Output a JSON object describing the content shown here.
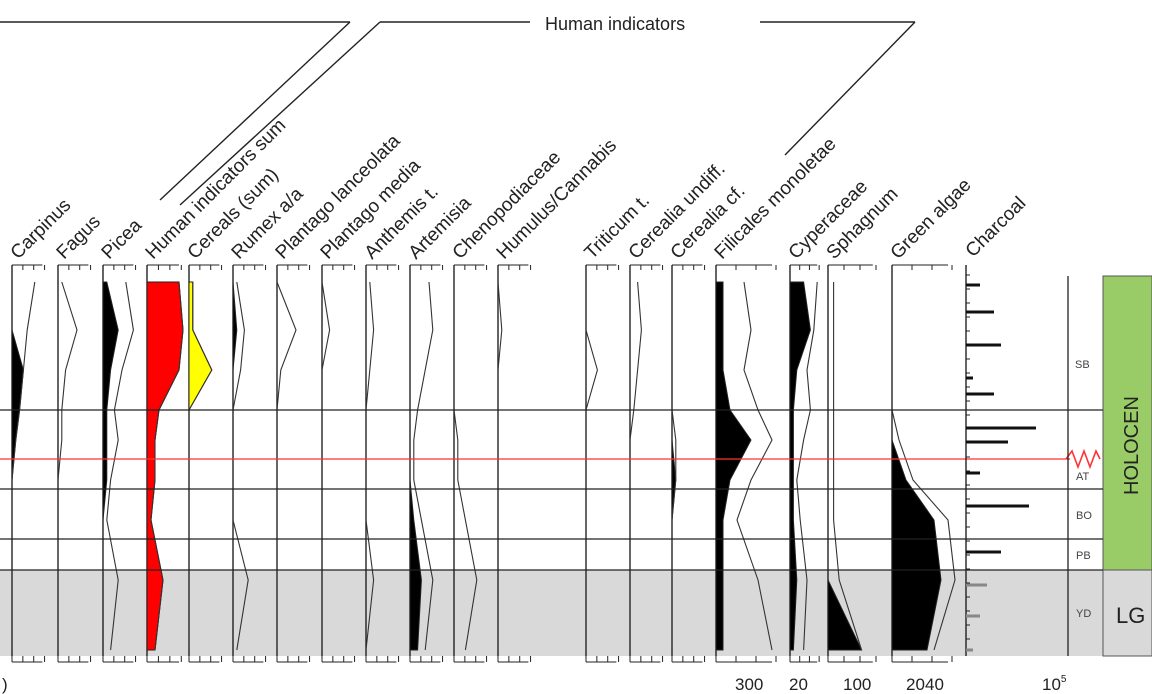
{
  "chart_data": {
    "type": "area",
    "group_label": "Human indicators",
    "taxa": [
      {
        "name": "Carpinus",
        "fill": "#000000",
        "profile": [
          0,
          0,
          0.3,
          0.2,
          0.1,
          0,
          0,
          0,
          0
        ],
        "curve": [
          0.6,
          0.4,
          0.3,
          0.2,
          0.1,
          0,
          0,
          0,
          0
        ]
      },
      {
        "name": "Fagus",
        "fill": "#000000",
        "profile": [
          0,
          0,
          0,
          0,
          0,
          0,
          0,
          0,
          0
        ],
        "curve": [
          0.1,
          0.5,
          0.2,
          0.1,
          0.1,
          0,
          0,
          0,
          0
        ]
      },
      {
        "name": "Picea",
        "fill": "#000000",
        "profile": [
          0.1,
          0.4,
          0.2,
          0.1,
          0.1,
          0.1,
          0,
          0,
          0
        ],
        "curve": [
          0.6,
          0.8,
          0.5,
          0.3,
          0.4,
          0.2,
          0.1,
          0.4,
          0.2
        ]
      },
      {
        "name": "Human indicators sum",
        "fill": "#ff0000",
        "profile": [
          0.8,
          0.9,
          0.8,
          0.3,
          0.2,
          0.2,
          0.1,
          0.4,
          0.2
        ],
        "curve": [
          0.8,
          0.9,
          0.8,
          0.3,
          0.2,
          0.2,
          0.1,
          0.4,
          0.2
        ]
      },
      {
        "name": "Cereals (sum)",
        "fill": "#ffff00",
        "profile": [
          0.1,
          0.1,
          0.6,
          0,
          0,
          0,
          0,
          0,
          0
        ],
        "curve": [
          0.1,
          0.1,
          0.6,
          0,
          0,
          0,
          0,
          0,
          0
        ]
      },
      {
        "name": "Rumex a/a",
        "fill": "#000000",
        "profile": [
          0,
          0.1,
          0,
          0,
          0,
          0,
          0,
          0,
          0
        ],
        "curve": [
          0.1,
          0.3,
          0.2,
          0,
          0,
          0,
          0,
          0.4,
          0.1
        ]
      },
      {
        "name": "Plantago lanceolata",
        "fill": "#000000",
        "profile": [
          0,
          0,
          0,
          0,
          0,
          0,
          0,
          0,
          0
        ],
        "curve": [
          0,
          0.5,
          0.1,
          0,
          0,
          0,
          0,
          0,
          0
        ]
      },
      {
        "name": "Plantago media",
        "fill": "#000000",
        "profile": [
          0,
          0,
          0,
          0,
          0,
          0,
          0,
          0,
          0
        ],
        "curve": [
          0,
          0.2,
          0,
          0,
          0,
          0,
          0,
          0,
          0
        ]
      },
      {
        "name": "Anthemis t.",
        "fill": "#000000",
        "profile": [
          0,
          0,
          0,
          0,
          0,
          0,
          0,
          0,
          0
        ],
        "curve": [
          0.1,
          0.2,
          0.1,
          0,
          0,
          0,
          0,
          0.2,
          0
        ]
      },
      {
        "name": "Artemisia",
        "fill": "#000000",
        "profile": [
          0,
          0,
          0,
          0,
          0,
          0,
          0.1,
          0.3,
          0.2
        ],
        "curve": [
          0.5,
          0.6,
          0.4,
          0.2,
          0.1,
          0.1,
          0.3,
          0.6,
          0.4
        ]
      },
      {
        "name": "Chenopodiaceae",
        "fill": "#000000",
        "profile": [
          0,
          0,
          0,
          0,
          0,
          0,
          0,
          0,
          0
        ],
        "curve": [
          0,
          0,
          0,
          0,
          0.1,
          0.1,
          0.3,
          0.6,
          0.3
        ]
      },
      {
        "name": "Humulus/Cannabis",
        "fill": "#000000",
        "profile": [
          0,
          0,
          0,
          0,
          0,
          0,
          0,
          0,
          0
        ],
        "curve": [
          0,
          0.1,
          0,
          0,
          0,
          0,
          0,
          0,
          0
        ]
      },
      {
        "name": "Triticum t.",
        "fill": "#000000",
        "profile": [
          0,
          0,
          0,
          0,
          0,
          0,
          0,
          0,
          0
        ],
        "curve": [
          0,
          0,
          0.3,
          0,
          0,
          0,
          0,
          0,
          0
        ]
      },
      {
        "name": "Cerealia undiff.",
        "fill": "#000000",
        "profile": [
          0,
          0,
          0,
          0,
          0,
          0,
          0,
          0,
          0
        ],
        "curve": [
          0.2,
          0.3,
          0.2,
          0.1,
          0,
          0,
          0,
          0,
          0
        ]
      },
      {
        "name": "Cerealia cf.",
        "fill": "#000000",
        "profile": [
          0,
          0,
          0,
          0,
          0,
          0.1,
          0,
          0,
          0
        ],
        "curve": [
          0,
          0,
          0,
          0,
          0.1,
          0.1,
          0,
          0,
          0
        ]
      },
      {
        "name": "Filicales monoletae",
        "fill": "#000000",
        "profile": [
          0.1,
          0.1,
          0.1,
          0.2,
          0.5,
          0.2,
          0.1,
          0.1,
          0.1
        ],
        "curve": [
          0.4,
          0.5,
          0.4,
          0.6,
          0.8,
          0.5,
          0.3,
          0.6,
          0.8
        ]
      },
      {
        "name": "Cyperaceae",
        "fill": "#000000",
        "profile": [
          0.4,
          0.6,
          0.2,
          0.1,
          0.1,
          0.1,
          0.1,
          0.2,
          0.1
        ],
        "curve": [
          0.8,
          0.7,
          0.5,
          0.6,
          0.4,
          0.2,
          0.3,
          0.5,
          0.4
        ]
      },
      {
        "name": "Sphagnum",
        "fill": "#000000",
        "profile": [
          0,
          0,
          0,
          0,
          0,
          0,
          0,
          0,
          0.6
        ],
        "curve": [
          0.1,
          0.1,
          0.1,
          0.1,
          0.1,
          0.1,
          0.1,
          0.2,
          0.6
        ]
      },
      {
        "name": "Green algae",
        "fill": "#000000",
        "profile": [
          0,
          0,
          0,
          0,
          0,
          0.2,
          0.6,
          0.7,
          0.5
        ],
        "curve": [
          0,
          0,
          0,
          0,
          0.1,
          0.3,
          0.8,
          0.9,
          0.6
        ]
      }
    ],
    "scale_labels": [
      "300",
      "20",
      "100",
      "20",
      "40",
      "10"
    ],
    "charcoal": {
      "name": "Charcoal",
      "exponent": "5",
      "values": [
        0.2,
        0.4,
        0.5,
        0.1,
        0.4,
        1.0,
        0.6,
        0.2,
        0.9,
        0.5,
        0.3,
        0.2,
        0.1
      ]
    },
    "zones": [
      "SB",
      "AT",
      "BO",
      "PB",
      "YD"
    ],
    "periods": [
      "HOLOCEN",
      "LG"
    ],
    "colors": {
      "human_sum": "#ff0000",
      "cereals": "#ffff00",
      "holocene": "#99cc66",
      "late_glacial": "#d9d9d9",
      "hiatus": "#ff3333"
    }
  }
}
